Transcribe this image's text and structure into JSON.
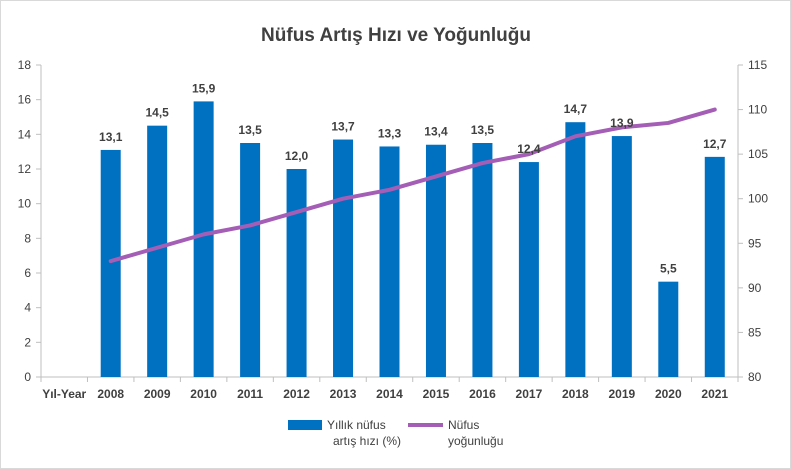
{
  "chart_data": {
    "type": "bar",
    "title": "Nüfus Artış Hızı ve Yoğunluğu",
    "category_axis_label": "Yıl-Year",
    "categories": [
      "2008",
      "2009",
      "2010",
      "2011",
      "2012",
      "2013",
      "2014",
      "2015",
      "2016",
      "2017",
      "2018",
      "2019",
      "2020",
      "2021"
    ],
    "series": [
      {
        "name": "Yıllık nüfus artış hızı (%)",
        "type": "bar",
        "axis": "left",
        "color": "#0070C0",
        "values": [
          13.1,
          14.5,
          15.9,
          13.5,
          12.0,
          13.7,
          13.3,
          13.4,
          13.5,
          12.4,
          14.7,
          13.9,
          5.5,
          12.7
        ],
        "labels": [
          "13,1",
          "14,5",
          "15,9",
          "13,5",
          "12,0",
          "13,7",
          "13,3",
          "13,4",
          "13,5",
          "12,4",
          "14,7",
          "13,9",
          "5,5",
          "12,7"
        ]
      },
      {
        "name": "Nüfus yoğunluğu",
        "type": "line",
        "axis": "right",
        "color": "#A55EB5",
        "values": [
          93,
          94.5,
          96,
          97,
          98.5,
          100,
          101,
          102.5,
          104,
          105,
          107,
          108,
          108.5,
          110
        ]
      }
    ],
    "legend": {
      "position": "bottom",
      "items": [
        {
          "line1": "Yıllık nüfus",
          "line2": "artış hızı (%)"
        },
        {
          "line1": "Nüfus",
          "line2": "yoğunluğu"
        }
      ]
    },
    "ylim_left": [
      0,
      18
    ],
    "yticks_left": [
      "0",
      "2",
      "4",
      "6",
      "8",
      "10",
      "12",
      "14",
      "16",
      "18"
    ],
    "ylim_right": [
      80,
      115
    ],
    "yticks_right": [
      "80",
      "85",
      "90",
      "95",
      "100",
      "105",
      "110",
      "115"
    ],
    "grid": false
  }
}
